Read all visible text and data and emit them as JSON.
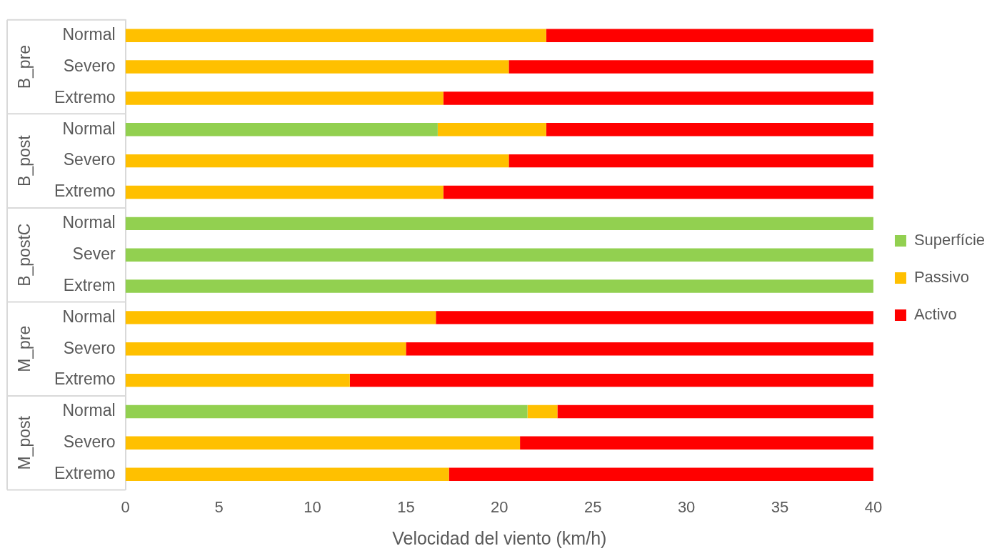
{
  "chart_data": {
    "type": "bar",
    "orientation": "horizontal",
    "stacked": true,
    "xlabel": "Velocidad del viento (km/h)",
    "categories": [
      "Normal",
      "Severo",
      "Extremo",
      "Normal",
      "Severo",
      "Extremo",
      "Normal",
      "Sever",
      "Extrem",
      "Normal",
      "Severo",
      "Extremo",
      "Normal",
      "Severo",
      "Extremo"
    ],
    "annotations": [
      "B_pre",
      "B_post",
      "B_postC",
      "M_pre",
      "M_post"
    ],
    "series": [
      {
        "name": "Superfície",
        "color": "#92d050",
        "values": [
          0,
          0,
          0,
          16.7,
          0,
          0,
          40,
          40,
          40,
          0,
          0,
          0,
          21.5,
          0,
          0
        ]
      },
      {
        "name": "Passivo",
        "color": "#ffc000",
        "values": [
          22.5,
          20.5,
          17,
          5.8,
          20.5,
          17,
          0,
          0,
          0,
          16.6,
          15,
          12,
          1.6,
          21.1,
          17.3
        ]
      },
      {
        "name": "Activo",
        "color": "#ff0000",
        "values": [
          17.5,
          19.5,
          23,
          17.5,
          19.5,
          23,
          0,
          0,
          0,
          23.4,
          25,
          28,
          16.9,
          18.9,
          22.7
        ]
      }
    ],
    "xlim": [
      0,
      40
    ],
    "xticks": [
      0,
      5,
      10,
      15,
      20,
      25,
      30,
      35,
      40
    ],
    "grid": false,
    "legend": "right"
  }
}
